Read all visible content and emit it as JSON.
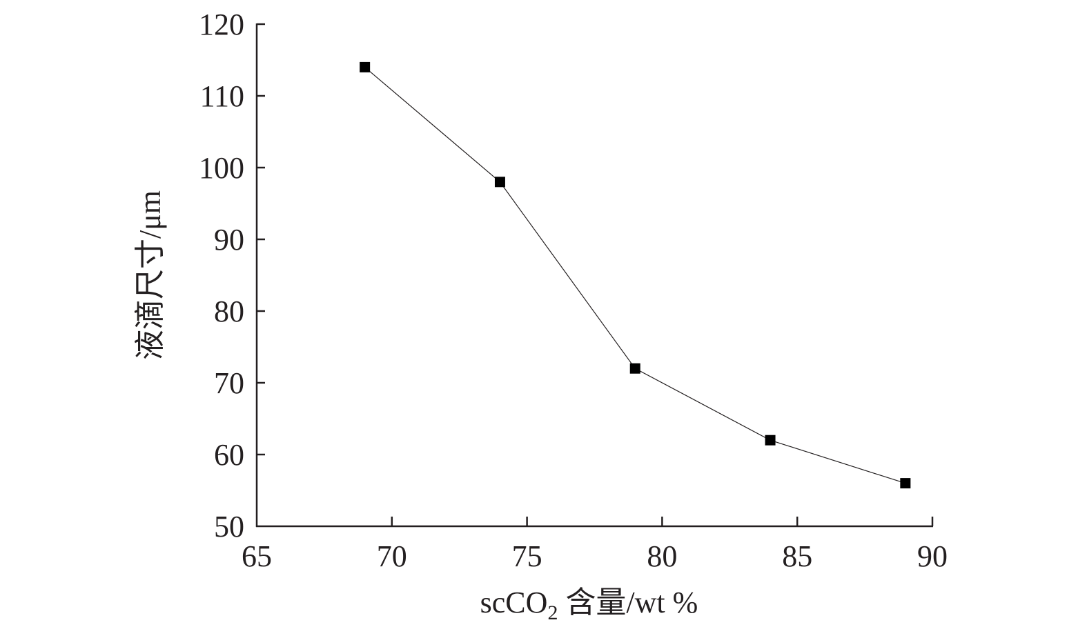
{
  "chart_data": {
    "type": "line",
    "title": "",
    "xlabel": {
      "prefix": "scCO",
      "subscript": "2",
      "suffix": " 含量/wt %"
    },
    "ylabel": "液滴尺寸/μm",
    "xlim": [
      65,
      90
    ],
    "ylim": [
      50,
      120
    ],
    "xticks": [
      65,
      70,
      75,
      80,
      85,
      90
    ],
    "yticks": [
      50,
      60,
      70,
      80,
      90,
      100,
      110,
      120
    ],
    "grid": false,
    "legend": "none",
    "marker": "square",
    "series": [
      {
        "x": [
          69,
          74,
          79,
          84,
          89
        ],
        "values": [
          114,
          98,
          72,
          62,
          56
        ]
      }
    ]
  }
}
